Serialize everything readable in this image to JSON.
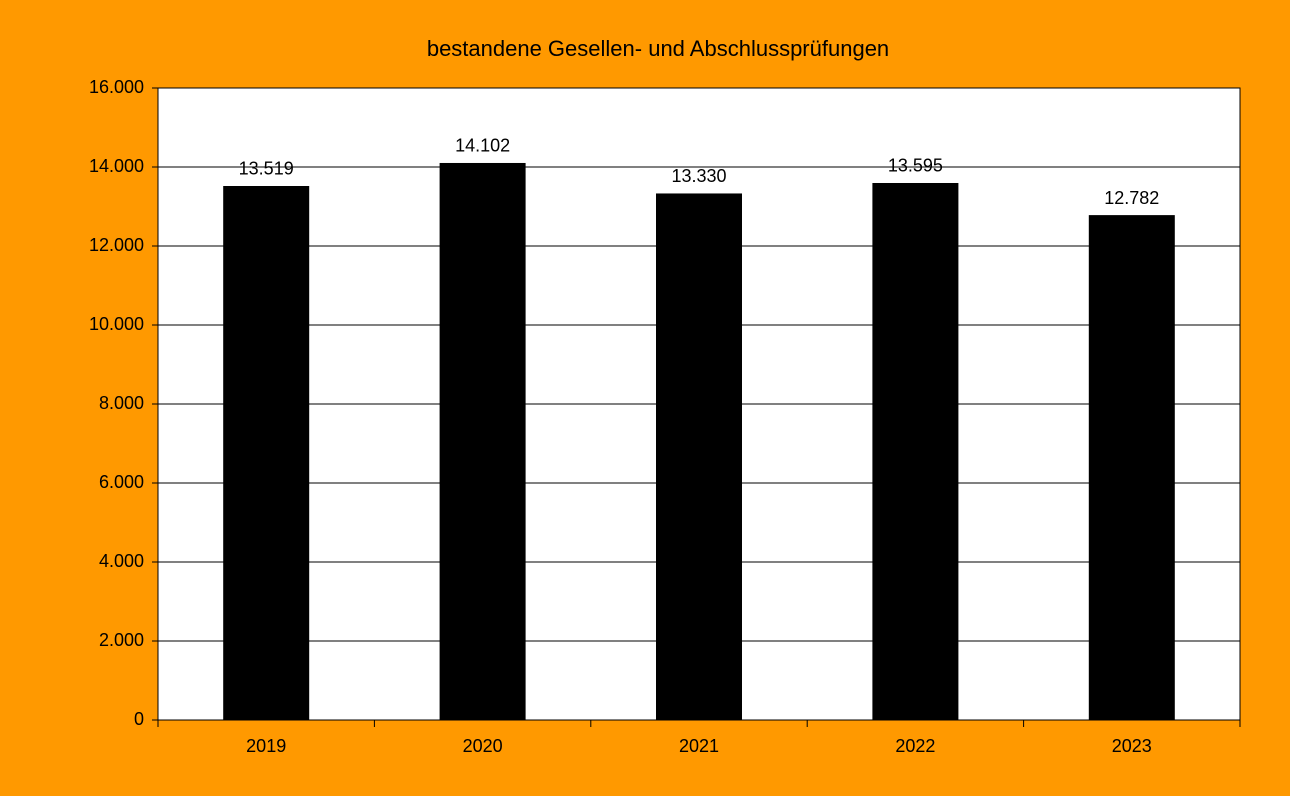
{
  "chart_data": {
    "type": "bar",
    "title": "bestandene Gesellen- und Abschlussprüfungen",
    "categories": [
      "2019",
      "2020",
      "2021",
      "2022",
      "2023"
    ],
    "values": [
      13519,
      14102,
      13330,
      13595,
      12782
    ],
    "value_labels": [
      "13.519",
      "14.102",
      "13.330",
      "13.595",
      "12.782"
    ],
    "color": "#000000",
    "ylim": [
      0,
      16000
    ],
    "yticks": [
      0,
      {
        "value": 2000,
        "label": "2.000"
      },
      {
        "value": 4000,
        "label": "4.000"
      },
      {
        "value": 6000,
        "label": "6.000"
      },
      {
        "value": 8000,
        "label": "8.000"
      },
      {
        "value": 10000,
        "label": "10.000"
      },
      {
        "value": 12000,
        "label": "12.000"
      },
      {
        "value": 14000,
        "label": "14.000"
      },
      {
        "value": 16000,
        "label": "16.000"
      }
    ],
    "grid": true
  }
}
